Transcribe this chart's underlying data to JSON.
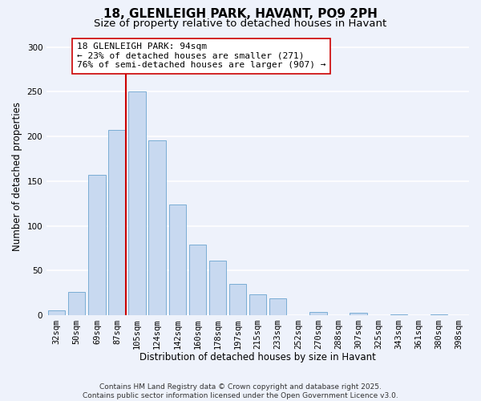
{
  "title": "18, GLENLEIGH PARK, HAVANT, PO9 2PH",
  "subtitle": "Size of property relative to detached houses in Havant",
  "xlabel": "Distribution of detached houses by size in Havant",
  "ylabel": "Number of detached properties",
  "bar_color": "#c8d9f0",
  "bar_edge_color": "#7aadd4",
  "background_color": "#eef2fb",
  "grid_color": "#ffffff",
  "categories": [
    "32sqm",
    "50sqm",
    "69sqm",
    "87sqm",
    "105sqm",
    "124sqm",
    "142sqm",
    "160sqm",
    "178sqm",
    "197sqm",
    "215sqm",
    "233sqm",
    "252sqm",
    "270sqm",
    "288sqm",
    "307sqm",
    "325sqm",
    "343sqm",
    "361sqm",
    "380sqm",
    "398sqm"
  ],
  "values": [
    5,
    26,
    157,
    207,
    250,
    196,
    124,
    79,
    61,
    35,
    23,
    19,
    0,
    4,
    0,
    3,
    0,
    1,
    0,
    1,
    0
  ],
  "vline_x_idx": 3,
  "vline_color": "#cc0000",
  "annotation_line1": "18 GLENLEIGH PARK: 94sqm",
  "annotation_line2": "← 23% of detached houses are smaller (271)",
  "annotation_line3": "76% of semi-detached houses are larger (907) →",
  "annotation_box_color": "#ffffff",
  "annotation_box_edge": "#cc0000",
  "ylim": [
    0,
    310
  ],
  "yticks": [
    0,
    50,
    100,
    150,
    200,
    250,
    300
  ],
  "footnote_line1": "Contains HM Land Registry data © Crown copyright and database right 2025.",
  "footnote_line2": "Contains public sector information licensed under the Open Government Licence v3.0.",
  "title_fontsize": 11,
  "subtitle_fontsize": 9.5,
  "ylabel_fontsize": 8.5,
  "xlabel_fontsize": 8.5,
  "tick_fontsize": 7.5,
  "annotation_fontsize": 8,
  "footnote_fontsize": 6.5
}
